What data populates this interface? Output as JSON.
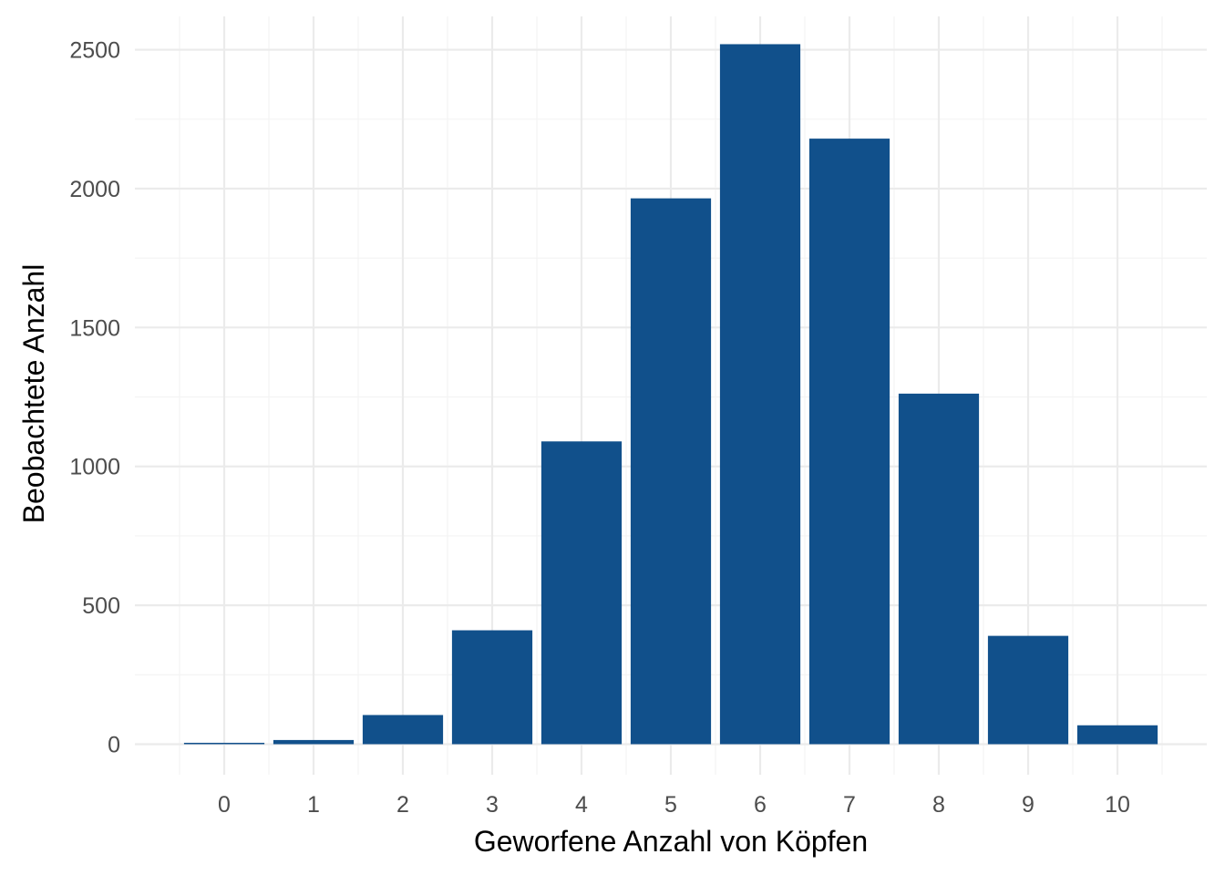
{
  "chart_data": {
    "type": "bar",
    "title": "",
    "xlabel": "Geworfene Anzahl von Köpfen",
    "ylabel": "Beobachtete Anzahl",
    "categories": [
      "0",
      "1",
      "2",
      "3",
      "4",
      "5",
      "6",
      "7",
      "8",
      "9",
      "10"
    ],
    "values": [
      5,
      15,
      105,
      410,
      1090,
      1965,
      2520,
      2180,
      1262,
      390,
      68
    ],
    "yticks": [
      0,
      500,
      1000,
      1500,
      2000,
      2500
    ],
    "ylim": [
      -110,
      2620
    ],
    "grid": true,
    "legend": "none",
    "bar_color": "#11508b"
  }
}
